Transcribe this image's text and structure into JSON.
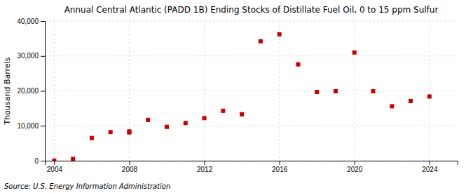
{
  "chart_data": {
    "type": "scatter",
    "title": "Annual Central Atlantic (PADD 1B) Ending Stocks of Distillate Fuel Oil, 0 to 15 ppm Sulfur",
    "ylabel": "Thousand Barrels",
    "annotations": [
      "Source: U.S. Energy Information Administration"
    ],
    "x": [
      2004,
      2005,
      2006,
      2007,
      2008,
      2008,
      2009,
      2010,
      2011,
      2012,
      2013,
      2014,
      2015,
      2016,
      2017,
      2018,
      2019,
      2020,
      2021,
      2022,
      2023,
      2024
    ],
    "values": [
      30,
      500,
      6500,
      8200,
      8400,
      8100,
      11700,
      9700,
      10800,
      12200,
      14300,
      13300,
      34200,
      36200,
      27600,
      19700,
      19900,
      31000,
      19900,
      15600,
      17100,
      18400
    ],
    "color": "#cc0000",
    "marker": "square",
    "xlim": [
      2003.5,
      2025.5
    ],
    "ylim": [
      0,
      40000
    ],
    "xticks": [
      2004,
      2008,
      2012,
      2016,
      2020,
      2024
    ],
    "yticks": [
      0,
      {
        "value": 10000,
        "label": "10,000"
      },
      {
        "value": 20000,
        "label": "20,000"
      },
      {
        "value": 30000,
        "label": "30,000"
      },
      {
        "value": 40000,
        "label": "40,000"
      }
    ],
    "grid": true
  }
}
